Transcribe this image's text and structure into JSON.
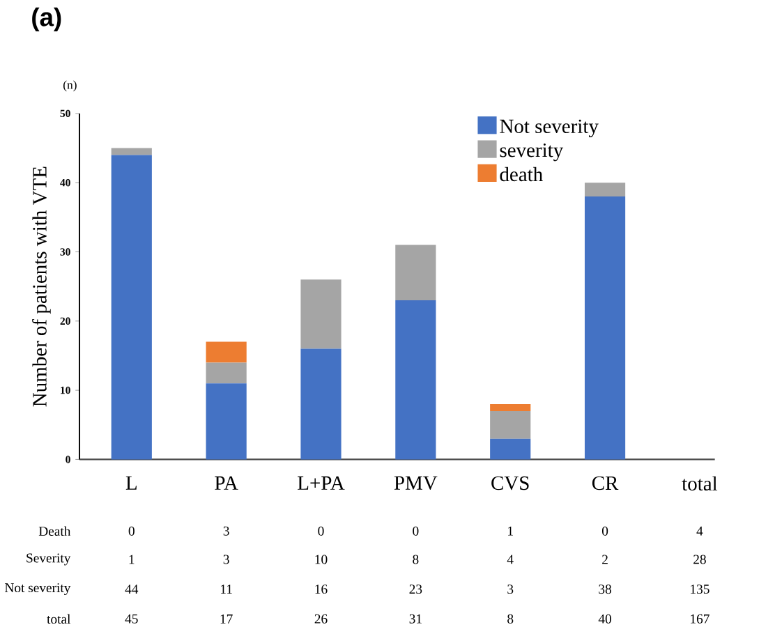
{
  "chart_data": {
    "type": "bar",
    "title": "(a)",
    "ylabel": "Number of patients with VTE",
    "stacked": true,
    "categories": [
      "L",
      "PA",
      "L+PA",
      "PMV",
      "CVS",
      "CR",
      "total"
    ],
    "series": [
      {
        "name": "Not severity",
        "color": "#4472c4",
        "values": [
          44,
          11,
          16,
          23,
          3,
          38,
          null
        ],
        "value_labels": [
          "44",
          "11",
          "16",
          "23",
          "3",
          "38",
          "135"
        ]
      },
      {
        "name": "severity",
        "color": "#a5a5a5",
        "values": [
          1,
          3,
          10,
          8,
          4,
          2,
          null
        ],
        "value_labels": [
          "1",
          "3",
          "10",
          "8",
          "4",
          "2",
          "28"
        ]
      },
      {
        "name": "death",
        "color": "#ed7d31",
        "values": [
          0,
          3,
          0,
          0,
          1,
          0,
          null
        ],
        "value_labels": [
          "0",
          "3",
          "0",
          "0",
          "1",
          "0",
          "4"
        ]
      }
    ],
    "annotations": [
      "(n)",
      "Death",
      "Severity",
      "Not severity",
      "total",
      "45",
      "17",
      "26",
      "31",
      "8",
      "40",
      "167"
    ],
    "ylim": [
      0,
      50
    ],
    "yticks": [
      0,
      10,
      20,
      30,
      40,
      50
    ],
    "grid": false,
    "legend": "top right"
  }
}
